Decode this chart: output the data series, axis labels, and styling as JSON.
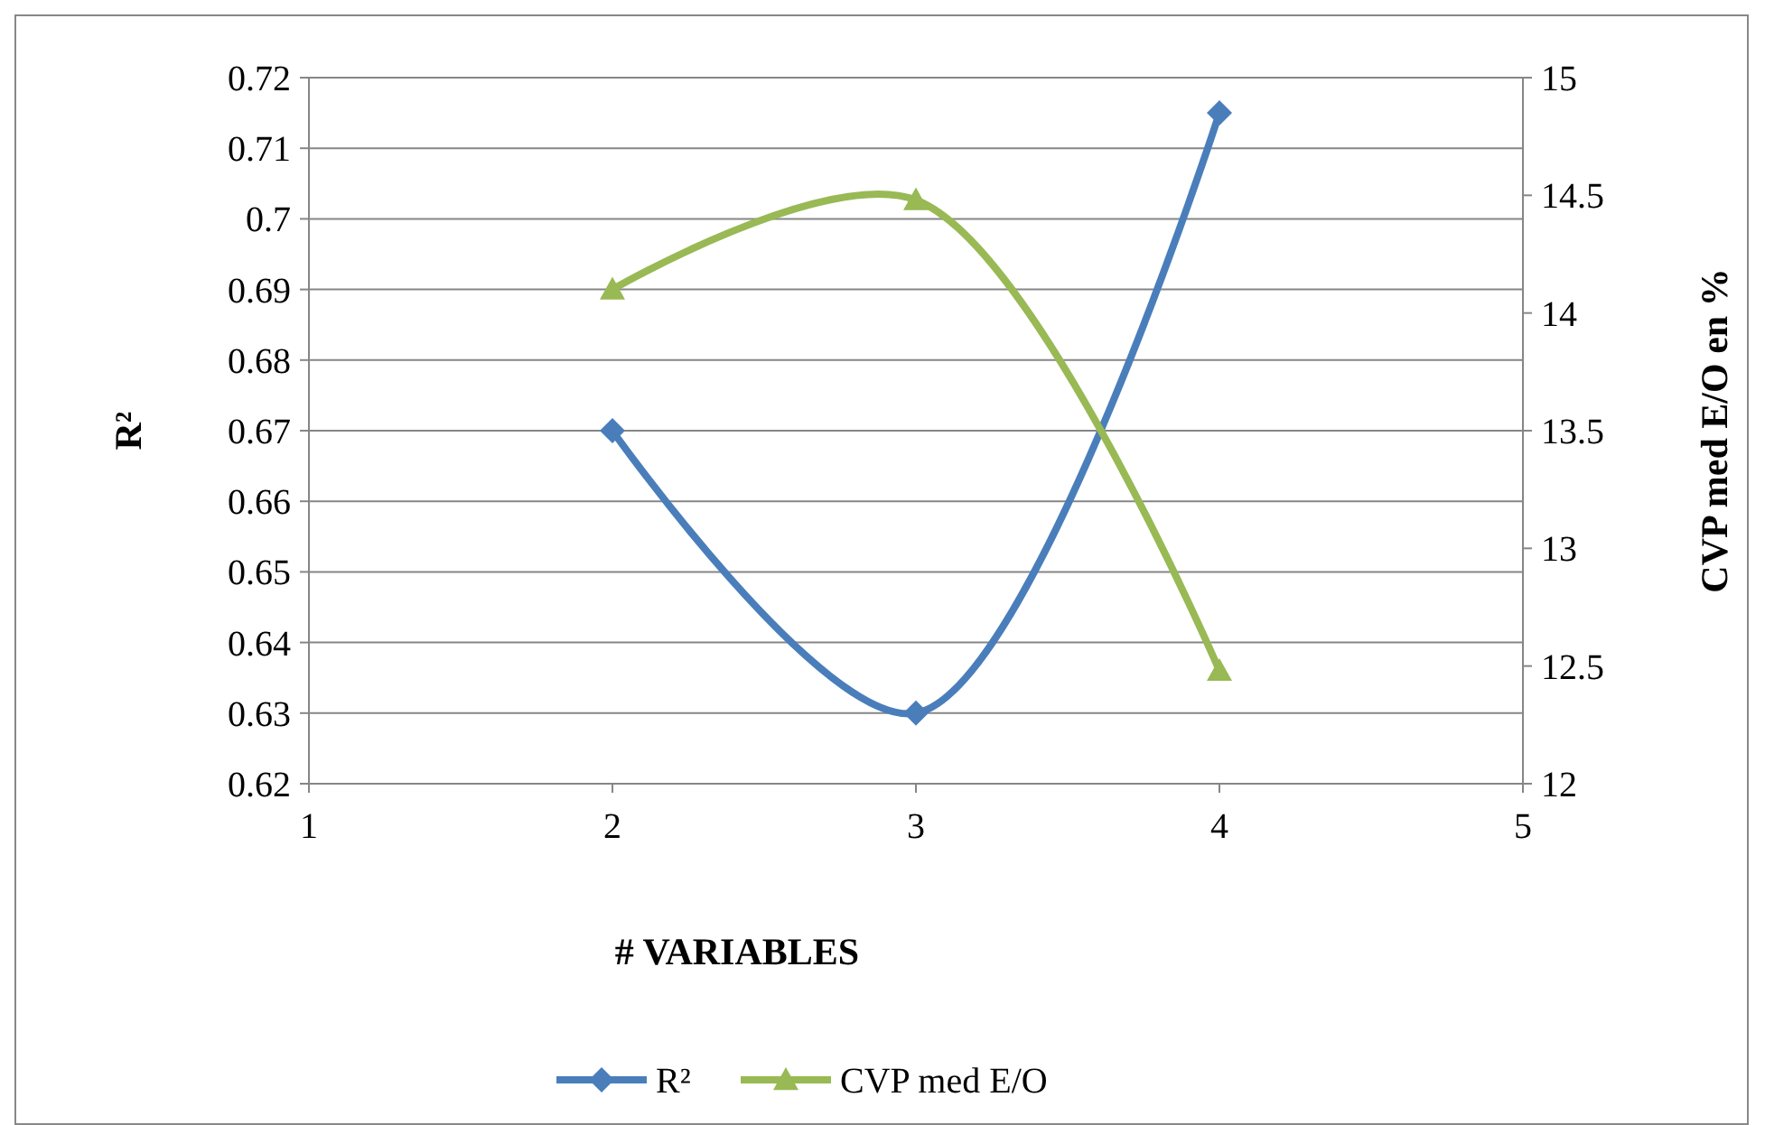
{
  "chart_data": {
    "type": "line",
    "xlabel": "# VARIABLES",
    "ylabel": "R²",
    "y2label": "CVP med E/O en %",
    "x": [
      2,
      3,
      4
    ],
    "xlim": [
      1,
      5
    ],
    "xticks": [
      1,
      2,
      3,
      4,
      5
    ],
    "ylim": [
      0.62,
      0.72
    ],
    "yticks": [
      0.62,
      0.63,
      0.64,
      0.65,
      0.66,
      0.67,
      0.68,
      0.69,
      0.7,
      0.71,
      0.72
    ],
    "y2lim": [
      12,
      15
    ],
    "y2ticks": [
      12,
      12.5,
      13,
      13.5,
      14,
      14.5,
      15
    ],
    "grid": "y",
    "legend": "bottom",
    "series": [
      {
        "name": "R²",
        "color": "#4a7ebb",
        "values": [
          0.67,
          0.63,
          0.715
        ],
        "marker": "diamond"
      },
      {
        "name": "CVP med E/O",
        "color": "#98b954",
        "values": [
          14.1,
          14.48,
          12.48
        ],
        "marker": "triangle",
        "axis": "y2"
      }
    ]
  }
}
